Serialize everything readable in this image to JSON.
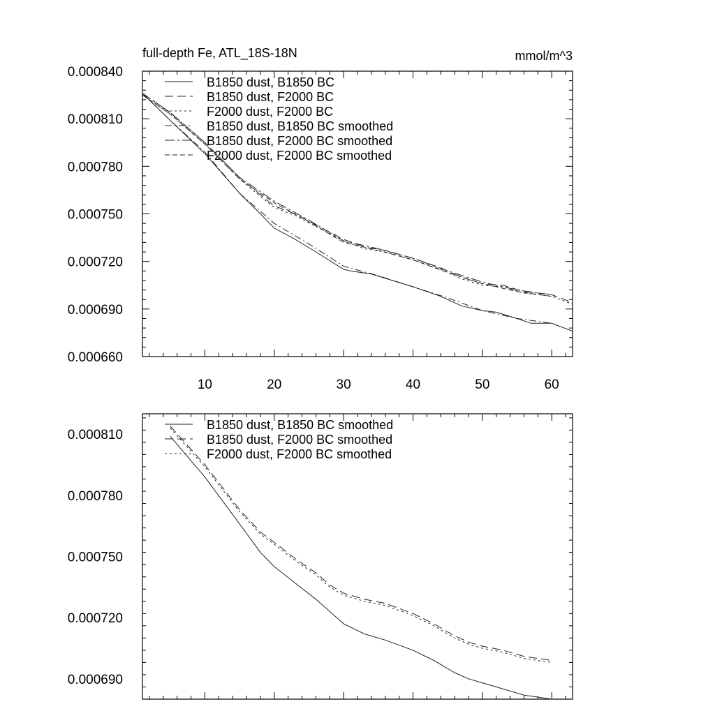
{
  "chart_data": [
    {
      "type": "line",
      "title": "full-depth Fe, ATL_18S-18N",
      "units": "mmol/m^3",
      "xlim": [
        1,
        63
      ],
      "ylim": [
        0.00066,
        0.00084
      ],
      "xticks": [
        10,
        20,
        30,
        40,
        50,
        60
      ],
      "yticks": [
        0.00066,
        0.00069,
        0.00072,
        0.00075,
        0.00078,
        0.00081,
        0.00084
      ],
      "ytick_labels": [
        "0.000660",
        "0.000690",
        "0.000720",
        "0.000750",
        "0.000780",
        "0.000810",
        "0.000840"
      ],
      "legend_position": "top-left",
      "series": [
        {
          "name": "B1850 dust, B1850 BC",
          "dash": "solid",
          "x": [
            1,
            5,
            10,
            15,
            18,
            20,
            23,
            26,
            30,
            31,
            34,
            37,
            40,
            44,
            47,
            50,
            52,
            55,
            57,
            60,
            63
          ],
          "y": [
            0.000826,
            0.000809,
            0.000788,
            0.000763,
            0.00075,
            0.000741,
            0.000734,
            0.000726,
            0.000715,
            0.000714,
            0.000712,
            0.000708,
            0.000704,
            0.000698,
            0.000692,
            0.000689,
            0.000688,
            0.000684,
            0.000681,
            0.000681,
            0.000676
          ]
        },
        {
          "name": "B1850 dust, F2000 BC",
          "dash": "long",
          "x": [
            1,
            5,
            10,
            15,
            18,
            20,
            23,
            26,
            30,
            33,
            36,
            40,
            44,
            47,
            50,
            53,
            56,
            60,
            63
          ],
          "y": [
            0.000826,
            0.000814,
            0.000795,
            0.000773,
            0.000762,
            0.000755,
            0.00075,
            0.000743,
            0.000734,
            0.000729,
            0.000727,
            0.000722,
            0.000716,
            0.00071,
            0.000706,
            0.000705,
            0.000701,
            0.000699,
            0.000694
          ]
        },
        {
          "name": "F2000 dust, F2000 BC",
          "dash": "short",
          "x": [
            1,
            5,
            10,
            15,
            18,
            20,
            23,
            26,
            30,
            33,
            36,
            40,
            44,
            47,
            50,
            53,
            56,
            60,
            63
          ],
          "y": [
            0.000825,
            0.000813,
            0.000794,
            0.000772,
            0.000761,
            0.000754,
            0.000749,
            0.000742,
            0.000733,
            0.000728,
            0.000726,
            0.000721,
            0.000715,
            0.000709,
            0.000705,
            0.000704,
            0.0007,
            0.000698,
            0.000693
          ]
        },
        {
          "name": "B1850 dust, B1850 BC smoothed",
          "dash": "dashdot",
          "x": [
            1,
            5,
            10,
            15,
            20,
            25,
            30,
            35,
            40,
            45,
            50,
            55,
            60
          ],
          "y": [
            0.000826,
            0.000809,
            0.000789,
            0.000763,
            0.000744,
            0.000731,
            0.000717,
            0.000711,
            0.000704,
            0.000697,
            0.000689,
            0.000684,
            0.000681
          ]
        },
        {
          "name": "B1850 dust, F2000 BC smoothed",
          "dash": "dashdotlong",
          "x": [
            1,
            5,
            10,
            15,
            20,
            25,
            30,
            35,
            40,
            45,
            50,
            55,
            60
          ],
          "y": [
            0.000826,
            0.000814,
            0.000795,
            0.000773,
            0.000758,
            0.000746,
            0.000733,
            0.000728,
            0.000722,
            0.000714,
            0.000707,
            0.000702,
            0.000699
          ]
        },
        {
          "name": "F2000 dust, F2000 BC smoothed",
          "dash": "medium",
          "x": [
            1,
            5,
            10,
            15,
            20,
            25,
            30,
            35,
            40,
            45,
            50,
            55,
            60
          ],
          "y": [
            0.000825,
            0.000813,
            0.000794,
            0.000772,
            0.000757,
            0.000745,
            0.000732,
            0.000727,
            0.000721,
            0.000713,
            0.000706,
            0.000701,
            0.000698
          ]
        }
      ]
    },
    {
      "type": "line",
      "title": "",
      "xlim": [
        1,
        63
      ],
      "ylim": [
        0.00068,
        0.00082
      ],
      "xticks": [
        10,
        20,
        30,
        40,
        50,
        60
      ],
      "show_xtick_labels": false,
      "yticks": [
        0.00069,
        0.00072,
        0.00075,
        0.00078,
        0.00081
      ],
      "ytick_labels": [
        "0.000690",
        "0.000720",
        "0.000750",
        "0.000780",
        "0.000810"
      ],
      "legend_position": "top-left",
      "series": [
        {
          "name": "B1850 dust, B1850 BC smoothed",
          "dash": "solid",
          "x": [
            5,
            10,
            15,
            18,
            20,
            23,
            26,
            28,
            30,
            33,
            36,
            40,
            43,
            46,
            48,
            50,
            53,
            56,
            60
          ],
          "y": [
            0.000809,
            0.000789,
            0.000766,
            0.000752,
            0.000745,
            0.000737,
            0.000729,
            0.000723,
            0.000717,
            0.000712,
            0.000709,
            0.000704,
            0.000699,
            0.000693,
            0.00069,
            0.000688,
            0.000685,
            0.000682,
            0.00068
          ]
        },
        {
          "name": "B1850 dust, F2000 BC smoothed",
          "dash": "long",
          "x": [
            5,
            10,
            15,
            18,
            20,
            23,
            26,
            28,
            30,
            33,
            36,
            40,
            43,
            46,
            48,
            50,
            53,
            56,
            60
          ],
          "y": [
            0.000814,
            0.000795,
            0.000773,
            0.000762,
            0.000757,
            0.000749,
            0.000742,
            0.000736,
            0.000732,
            0.000729,
            0.000727,
            0.000722,
            0.000717,
            0.000711,
            0.000708,
            0.000706,
            0.000704,
            0.000701,
            0.000699
          ]
        },
        {
          "name": "F2000 dust, F2000 BC smoothed",
          "dash": "short",
          "x": [
            5,
            10,
            15,
            18,
            20,
            23,
            26,
            28,
            30,
            33,
            36,
            40,
            43,
            46,
            48,
            50,
            53,
            56,
            60
          ],
          "y": [
            0.000813,
            0.000794,
            0.000772,
            0.000761,
            0.000756,
            0.000748,
            0.000741,
            0.000735,
            0.000731,
            0.000728,
            0.000726,
            0.000721,
            0.000716,
            0.00071,
            0.000707,
            0.000705,
            0.000703,
            0.0007,
            0.000698
          ]
        }
      ]
    }
  ]
}
